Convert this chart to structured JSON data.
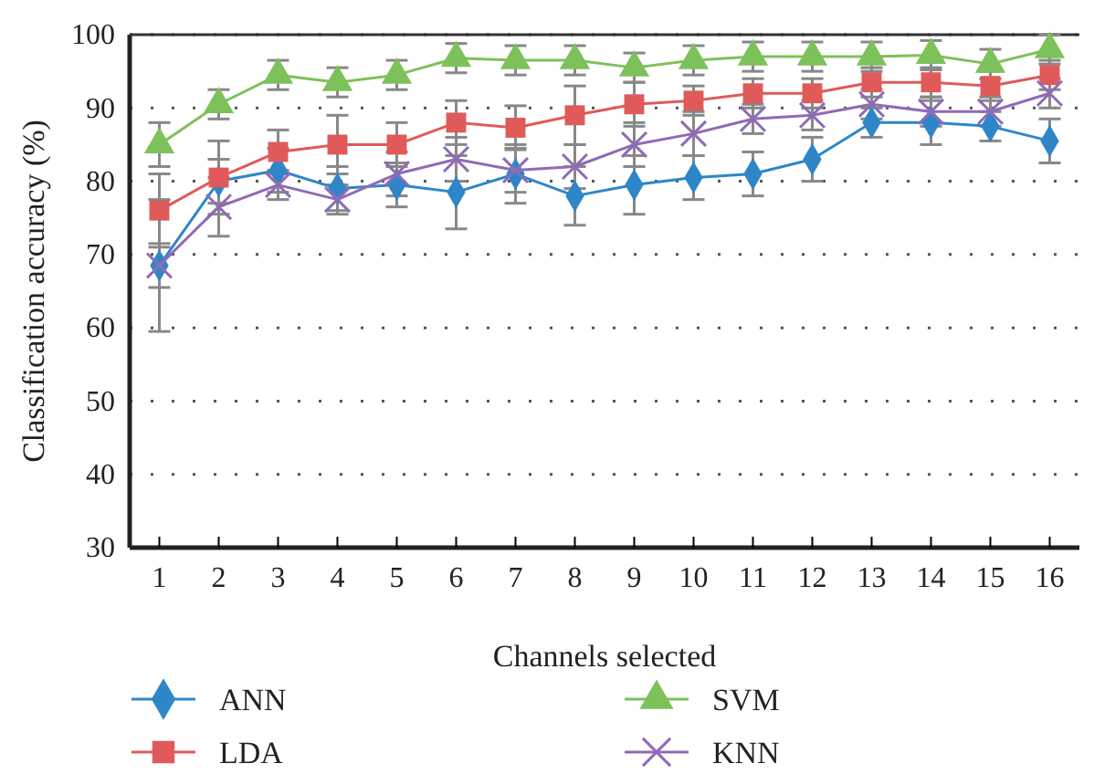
{
  "chart_data": {
    "type": "line",
    "xlabel": "Channels selected",
    "ylabel": "Classification accuracy (%)",
    "x": [
      1,
      2,
      3,
      4,
      5,
      6,
      7,
      8,
      9,
      10,
      11,
      12,
      13,
      14,
      15,
      16
    ],
    "xlim": [
      0.5,
      16.5
    ],
    "xticks": [
      1,
      2,
      3,
      4,
      5,
      6,
      7,
      8,
      9,
      10,
      11,
      12,
      13,
      14,
      15,
      16
    ],
    "ylim": [
      30,
      100
    ],
    "yticks": [
      30,
      40,
      50,
      60,
      70,
      80,
      90,
      100
    ],
    "grid": "y",
    "legend": "bottom",
    "series": [
      {
        "name": "ANN",
        "color": "#2e86c8",
        "marker": "diamond",
        "values": [
          68.5,
          80,
          81.5,
          79,
          79.5,
          78.5,
          81,
          78,
          79.5,
          80.5,
          81,
          83,
          88,
          88,
          87.5,
          85.5
        ],
        "errors": [
          9,
          3,
          3,
          3,
          3,
          5,
          4,
          4,
          4,
          3,
          3,
          3,
          2,
          3,
          2,
          3
        ]
      },
      {
        "name": "LDA",
        "color": "#e05a5a",
        "marker": "square",
        "values": [
          76,
          80.5,
          84,
          85,
          85,
          88,
          87.3,
          89,
          90.5,
          91,
          92,
          92,
          93.5,
          93.5,
          93,
          94.5
        ],
        "errors": [
          5,
          5,
          3,
          4,
          3,
          3,
          3,
          4,
          3,
          2,
          2,
          2,
          2,
          2,
          2,
          2
        ]
      },
      {
        "name": "SVM",
        "color": "#7dc15a",
        "marker": "triangle",
        "values": [
          85,
          90.5,
          94.5,
          93.5,
          94.5,
          96.8,
          96.5,
          96.5,
          95.5,
          96.5,
          97,
          97,
          97,
          97.2,
          96,
          98
        ],
        "errors": [
          3,
          2,
          2,
          2,
          2,
          2,
          2,
          2,
          2,
          2,
          2,
          2,
          2,
          2,
          2,
          2
        ]
      },
      {
        "name": "KNN",
        "color": "#8f6bb5",
        "marker": "cross",
        "values": [
          68.5,
          76.5,
          79.5,
          77.5,
          81,
          83,
          81.5,
          82,
          85,
          86.5,
          88.5,
          89,
          90.5,
          89.5,
          89.5,
          92
        ],
        "errors": [
          3,
          4,
          2,
          2,
          3,
          3,
          3,
          3,
          3,
          3,
          2,
          2,
          2,
          2,
          2,
          2
        ]
      }
    ]
  }
}
